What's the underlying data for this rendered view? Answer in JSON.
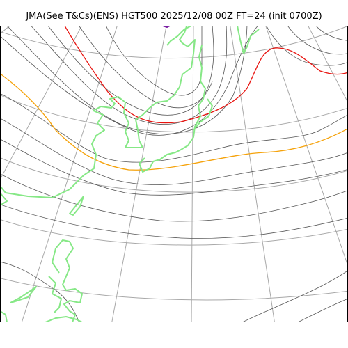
{
  "map": {
    "title": "JMA(See T&Cs)(ENS) HGT500 2025/12/08 00Z FT=24 (init 0700Z)",
    "colors": {
      "background": "#ffffff",
      "frame": "#000000",
      "graticule": "#a8a8a8",
      "contour": "#555555",
      "contour_highlight_red": "#e8130f",
      "contour_highlight_orange": "#f5a20a",
      "coastline": "#86e886",
      "minor_feature": "#7a1fa2"
    }
  }
}
